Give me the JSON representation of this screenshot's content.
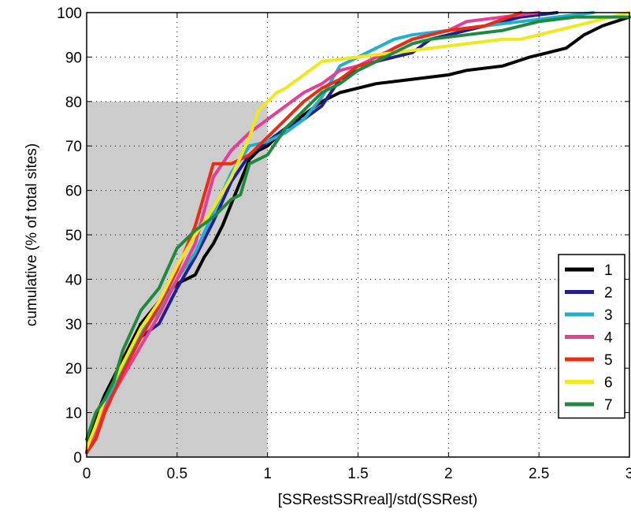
{
  "chart_data": {
    "type": "line",
    "title": "",
    "xlabel": "[SSRestSSRreal]/std(SSRest)",
    "ylabel": "cumulative (% of total sites)",
    "xlim": [
      0,
      3
    ],
    "ylim": [
      0,
      100
    ],
    "xticks": [
      "0",
      "0.5",
      "1",
      "1.5",
      "2",
      "2.5",
      "3"
    ],
    "yticks": [
      "0",
      "10",
      "20",
      "30",
      "40",
      "50",
      "60",
      "70",
      "80",
      "90",
      "100"
    ],
    "grid": true,
    "legend_position": "lower-right",
    "shaded_region": {
      "x": [
        0,
        1
      ],
      "y": [
        0,
        80
      ],
      "color": "#cccccc"
    },
    "series": [
      {
        "name": "1",
        "color": "#000000",
        "points": [
          [
            0,
            1
          ],
          [
            0.03,
            7
          ],
          [
            0.1,
            14
          ],
          [
            0.2,
            22
          ],
          [
            0.3,
            30
          ],
          [
            0.4,
            35
          ],
          [
            0.5,
            39
          ],
          [
            0.6,
            41
          ],
          [
            0.65,
            45
          ],
          [
            0.7,
            48
          ],
          [
            0.75,
            52
          ],
          [
            0.8,
            57
          ],
          [
            0.85,
            62
          ],
          [
            0.9,
            67
          ],
          [
            0.95,
            69
          ],
          [
            1.0,
            70
          ],
          [
            1.1,
            74
          ],
          [
            1.2,
            77
          ],
          [
            1.3,
            80
          ],
          [
            1.4,
            82
          ],
          [
            1.6,
            84
          ],
          [
            1.8,
            85
          ],
          [
            2.0,
            86
          ],
          [
            2.1,
            87
          ],
          [
            2.3,
            88
          ],
          [
            2.45,
            90
          ],
          [
            2.55,
            91
          ],
          [
            2.65,
            92
          ],
          [
            2.75,
            95
          ],
          [
            2.85,
            97
          ],
          [
            3.0,
            99
          ]
        ]
      },
      {
        "name": "2",
        "color": "#1f1f8f",
        "points": [
          [
            0,
            1
          ],
          [
            0.05,
            5
          ],
          [
            0.1,
            12
          ],
          [
            0.2,
            20
          ],
          [
            0.3,
            27
          ],
          [
            0.4,
            30
          ],
          [
            0.5,
            38
          ],
          [
            0.6,
            45
          ],
          [
            0.7,
            53
          ],
          [
            0.8,
            62
          ],
          [
            0.9,
            68
          ],
          [
            1.0,
            71
          ],
          [
            1.1,
            74
          ],
          [
            1.2,
            76
          ],
          [
            1.3,
            79
          ],
          [
            1.4,
            85
          ],
          [
            1.5,
            87
          ],
          [
            1.6,
            89
          ],
          [
            1.7,
            90
          ],
          [
            1.8,
            91
          ],
          [
            1.9,
            94
          ],
          [
            2.0,
            95
          ],
          [
            2.2,
            97
          ],
          [
            2.4,
            99
          ],
          [
            2.6,
            100
          ]
        ]
      },
      {
        "name": "3",
        "color": "#1fb0d0",
        "points": [
          [
            0,
            2
          ],
          [
            0.05,
            6
          ],
          [
            0.1,
            12
          ],
          [
            0.2,
            20
          ],
          [
            0.3,
            28
          ],
          [
            0.4,
            33
          ],
          [
            0.5,
            40
          ],
          [
            0.6,
            46
          ],
          [
            0.7,
            55
          ],
          [
            0.8,
            64
          ],
          [
            0.9,
            70
          ],
          [
            1.0,
            71
          ],
          [
            1.1,
            73
          ],
          [
            1.2,
            76
          ],
          [
            1.3,
            81
          ],
          [
            1.4,
            88
          ],
          [
            1.5,
            90
          ],
          [
            1.6,
            92
          ],
          [
            1.7,
            94
          ],
          [
            1.8,
            95
          ],
          [
            2.0,
            96
          ],
          [
            2.2,
            97
          ],
          [
            2.4,
            98
          ],
          [
            2.6,
            99
          ],
          [
            2.8,
            100
          ]
        ]
      },
      {
        "name": "4",
        "color": "#e83c96",
        "points": [
          [
            0,
            1
          ],
          [
            0.05,
            5
          ],
          [
            0.1,
            11
          ],
          [
            0.2,
            18
          ],
          [
            0.3,
            25
          ],
          [
            0.4,
            32
          ],
          [
            0.5,
            40
          ],
          [
            0.6,
            48
          ],
          [
            0.7,
            63
          ],
          [
            0.8,
            69
          ],
          [
            0.9,
            73
          ],
          [
            1.0,
            76
          ],
          [
            1.1,
            79
          ],
          [
            1.2,
            82
          ],
          [
            1.3,
            84
          ],
          [
            1.4,
            87
          ],
          [
            1.5,
            88
          ],
          [
            1.6,
            90
          ],
          [
            1.7,
            92
          ],
          [
            1.8,
            94
          ],
          [
            1.9,
            95
          ],
          [
            2.0,
            96
          ],
          [
            2.1,
            98
          ],
          [
            2.3,
            99
          ],
          [
            2.5,
            100
          ]
        ]
      },
      {
        "name": "5",
        "color": "#ee2a10",
        "points": [
          [
            0,
            1
          ],
          [
            0.05,
            4
          ],
          [
            0.1,
            10
          ],
          [
            0.2,
            19
          ],
          [
            0.3,
            27
          ],
          [
            0.4,
            34
          ],
          [
            0.5,
            42
          ],
          [
            0.6,
            52
          ],
          [
            0.7,
            66
          ],
          [
            0.8,
            66
          ],
          [
            0.9,
            68
          ],
          [
            1.0,
            72
          ],
          [
            1.1,
            76
          ],
          [
            1.2,
            80
          ],
          [
            1.3,
            83
          ],
          [
            1.4,
            85
          ],
          [
            1.5,
            88
          ],
          [
            1.6,
            89
          ],
          [
            1.7,
            92
          ],
          [
            1.8,
            94
          ],
          [
            1.9,
            95
          ],
          [
            2.0,
            96
          ],
          [
            2.2,
            97
          ],
          [
            2.4,
            100
          ]
        ]
      },
      {
        "name": "6",
        "color": "#f0e81a",
        "points": [
          [
            0,
            2
          ],
          [
            0.05,
            7
          ],
          [
            0.1,
            13
          ],
          [
            0.2,
            21
          ],
          [
            0.3,
            29
          ],
          [
            0.4,
            35
          ],
          [
            0.5,
            43
          ],
          [
            0.6,
            50
          ],
          [
            0.7,
            56
          ],
          [
            0.8,
            63
          ],
          [
            0.9,
            72
          ],
          [
            0.95,
            78
          ],
          [
            1.0,
            80
          ],
          [
            1.05,
            82
          ],
          [
            1.1,
            83
          ],
          [
            1.2,
            86
          ],
          [
            1.3,
            89
          ],
          [
            1.5,
            90
          ],
          [
            1.7,
            91
          ],
          [
            1.9,
            92
          ],
          [
            2.1,
            93
          ],
          [
            2.3,
            94
          ],
          [
            2.4,
            94
          ],
          [
            2.5,
            95
          ],
          [
            2.6,
            96
          ],
          [
            2.7,
            97
          ],
          [
            2.9,
            99
          ],
          [
            3.0,
            100
          ]
        ]
      },
      {
        "name": "7",
        "color": "#1e8a3e",
        "points": [
          [
            0,
            4
          ],
          [
            0.05,
            10
          ],
          [
            0.1,
            13
          ],
          [
            0.15,
            17
          ],
          [
            0.2,
            24
          ],
          [
            0.3,
            33
          ],
          [
            0.4,
            38
          ],
          [
            0.5,
            47
          ],
          [
            0.6,
            51
          ],
          [
            0.7,
            54
          ],
          [
            0.8,
            58
          ],
          [
            0.85,
            59
          ],
          [
            0.9,
            66
          ],
          [
            1.0,
            68
          ],
          [
            1.1,
            74
          ],
          [
            1.2,
            78
          ],
          [
            1.3,
            82
          ],
          [
            1.4,
            84
          ],
          [
            1.5,
            87
          ],
          [
            1.6,
            89
          ],
          [
            1.7,
            91
          ],
          [
            1.8,
            93
          ],
          [
            1.9,
            94
          ],
          [
            2.1,
            95
          ],
          [
            2.3,
            96
          ],
          [
            2.5,
            98
          ],
          [
            2.7,
            99
          ],
          [
            2.9,
            99
          ],
          [
            3.0,
            99
          ]
        ]
      }
    ]
  }
}
